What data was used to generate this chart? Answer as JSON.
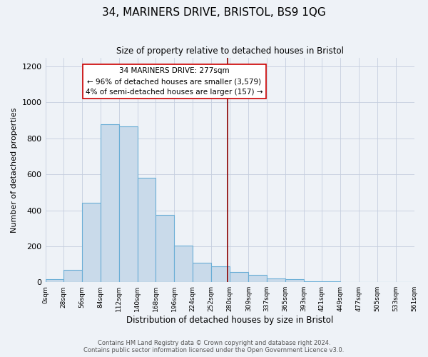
{
  "title": "34, MARINERS DRIVE, BRISTOL, BS9 1QG",
  "subtitle": "Size of property relative to detached houses in Bristol",
  "xlabel": "Distribution of detached houses by size in Bristol",
  "ylabel": "Number of detached properties",
  "bar_edges": [
    0,
    28,
    56,
    84,
    112,
    140,
    168,
    196,
    224,
    252,
    280,
    309,
    337,
    365,
    393,
    421,
    449,
    477,
    505,
    533,
    561
  ],
  "bar_heights": [
    15,
    70,
    440,
    880,
    865,
    580,
    375,
    205,
    110,
    90,
    55,
    42,
    20,
    17,
    5,
    3,
    2,
    1,
    0,
    0
  ],
  "bar_color": "#c9daea",
  "bar_edge_color": "#6baed6",
  "bar_linewidth": 0.8,
  "vline_x": 277,
  "vline_color": "#8b0000",
  "vline_linewidth": 1.2,
  "annotation_title": "34 MARINERS DRIVE: 277sqm",
  "annotation_line1": "← 96% of detached houses are smaller (3,579)",
  "annotation_line2": "4% of semi-detached houses are larger (157) →",
  "annotation_box_facecolor": "#ffffff",
  "annotation_box_edgecolor": "#cc0000",
  "ylim": [
    0,
    1250
  ],
  "xlim": [
    0,
    561
  ],
  "tick_positions": [
    0,
    28,
    56,
    84,
    112,
    140,
    168,
    196,
    224,
    252,
    280,
    309,
    337,
    365,
    393,
    421,
    449,
    477,
    505,
    533,
    561
  ],
  "tick_labels": [
    "0sqm",
    "28sqm",
    "56sqm",
    "84sqm",
    "112sqm",
    "140sqm",
    "168sqm",
    "196sqm",
    "224sqm",
    "252sqm",
    "280sqm",
    "309sqm",
    "337sqm",
    "365sqm",
    "393sqm",
    "421sqm",
    "449sqm",
    "477sqm",
    "505sqm",
    "533sqm",
    "561sqm"
  ],
  "footer_line1": "Contains HM Land Registry data © Crown copyright and database right 2024.",
  "footer_line2": "Contains public sector information licensed under the Open Government Licence v3.0.",
  "background_color": "#eef2f7",
  "plot_bg_color": "#eef2f7",
  "grid_color": "#c5cede",
  "title_fontsize": 11,
  "subtitle_fontsize": 8.5,
  "xlabel_fontsize": 8.5,
  "ylabel_fontsize": 8,
  "tick_fontsize": 6.5,
  "ytick_fontsize": 8,
  "footer_fontsize": 6,
  "annotation_fontsize": 7.5,
  "annotation_title_fontsize": 8
}
